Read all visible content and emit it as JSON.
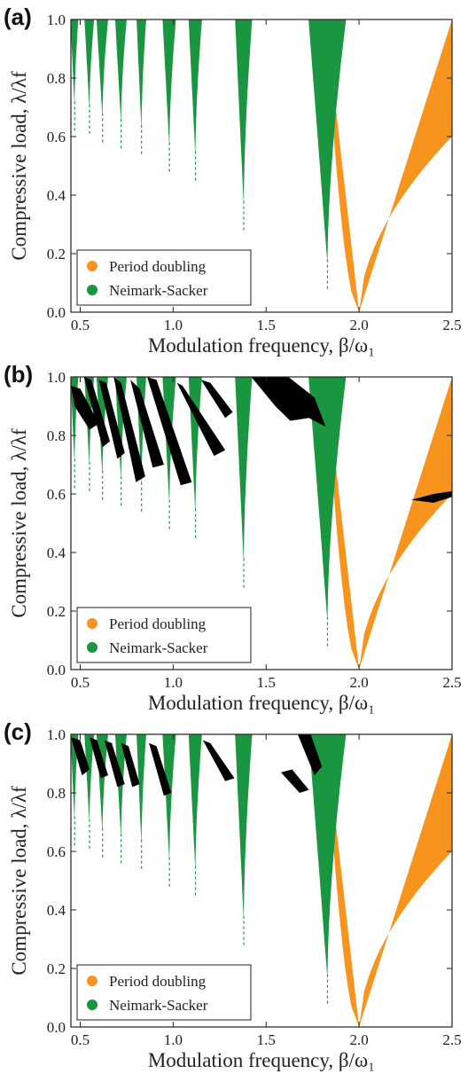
{
  "colors": {
    "period_doubling": "#f7941d",
    "neimark_sacker": "#1a9641",
    "other": "#000000",
    "axis": "#222222"
  },
  "chart_data": [
    {
      "panel_label": "(a)",
      "type": "heatmap",
      "xlabel": "Modulation frequency, β/ω₁",
      "ylabel": "Compressive load, λ/λf",
      "xlim": [
        0.45,
        2.5
      ],
      "ylim": [
        0.0,
        1.0
      ],
      "xticks": [
        "0.5",
        "1.0",
        "1.5",
        "2.0",
        "2.5"
      ],
      "yticks": [
        "0.0",
        "0.2",
        "0.4",
        "0.6",
        "0.8",
        "1.0"
      ],
      "legend": {
        "position": "bottom-left",
        "entries": [
          {
            "label": "Period doubling",
            "color": "#f7941d"
          },
          {
            "label": "Neimark-Sacker",
            "color": "#1a9641"
          }
        ]
      },
      "period_doubling_region": {
        "tip_x": 2.0,
        "tip_y": 0.0,
        "top_left_x": 1.82,
        "top_right_x": 2.5,
        "right_edge_y": 0.6
      },
      "neimark_sacker_tongues": [
        {
          "center": 0.47,
          "top_width": 0.04,
          "bottom_y": 0.72
        },
        {
          "center": 0.55,
          "top_width": 0.05,
          "bottom_y": 0.71
        },
        {
          "center": 0.62,
          "top_width": 0.06,
          "bottom_y": 0.68
        },
        {
          "center": 0.72,
          "top_width": 0.06,
          "bottom_y": 0.66
        },
        {
          "center": 0.83,
          "top_width": 0.05,
          "bottom_y": 0.64
        },
        {
          "center": 0.98,
          "top_width": 0.07,
          "bottom_y": 0.58
        },
        {
          "center": 1.12,
          "top_width": 0.07,
          "bottom_y": 0.55
        },
        {
          "center": 1.38,
          "top_width": 0.09,
          "bottom_y": 0.38
        },
        {
          "center": 1.83,
          "top_width": 0.2,
          "bottom_y": 0.18
        }
      ],
      "black_regions": []
    },
    {
      "panel_label": "(b)",
      "type": "heatmap",
      "xlabel": "Modulation frequency, β/ω₁",
      "ylabel": "Compressive load, λ/λf",
      "xlim": [
        0.45,
        2.5
      ],
      "ylim": [
        0.0,
        1.0
      ],
      "xticks": [
        "0.5",
        "1.0",
        "1.5",
        "2.0",
        "2.5"
      ],
      "yticks": [
        "0.0",
        "0.2",
        "0.4",
        "0.6",
        "0.8",
        "1.0"
      ],
      "legend": {
        "position": "bottom-left",
        "entries": [
          {
            "label": "Period doubling",
            "color": "#f7941d"
          },
          {
            "label": "Neimark-Sacker",
            "color": "#1a9641"
          }
        ]
      },
      "period_doubling_region": {
        "tip_x": 2.0,
        "tip_y": 0.0,
        "top_left_x": 1.82,
        "top_right_x": 2.5,
        "right_edge_y": 0.6
      },
      "neimark_sacker_tongues": [
        {
          "center": 0.47,
          "top_width": 0.04,
          "bottom_y": 0.72
        },
        {
          "center": 0.55,
          "top_width": 0.05,
          "bottom_y": 0.71
        },
        {
          "center": 0.62,
          "top_width": 0.06,
          "bottom_y": 0.68
        },
        {
          "center": 0.72,
          "top_width": 0.06,
          "bottom_y": 0.66
        },
        {
          "center": 0.83,
          "top_width": 0.05,
          "bottom_y": 0.64
        },
        {
          "center": 0.98,
          "top_width": 0.07,
          "bottom_y": 0.58
        },
        {
          "center": 1.12,
          "top_width": 0.07,
          "bottom_y": 0.55
        },
        {
          "center": 1.38,
          "top_width": 0.09,
          "bottom_y": 0.38
        },
        {
          "center": 1.83,
          "top_width": 0.2,
          "bottom_y": 0.18
        }
      ],
      "black_regions": [
        {
          "points": [
            [
              0.45,
              0.97
            ],
            [
              0.5,
              0.96
            ],
            [
              0.6,
              0.84
            ],
            [
              0.55,
              0.82
            ],
            [
              0.47,
              0.9
            ]
          ]
        },
        {
          "points": [
            [
              0.52,
              1.0
            ],
            [
              0.56,
              0.99
            ],
            [
              0.66,
              0.78
            ],
            [
              0.62,
              0.76
            ]
          ]
        },
        {
          "points": [
            [
              0.6,
              0.99
            ],
            [
              0.64,
              0.98
            ],
            [
              0.74,
              0.74
            ],
            [
              0.7,
              0.72
            ]
          ]
        },
        {
          "points": [
            [
              0.68,
              1.0
            ],
            [
              0.72,
              0.98
            ],
            [
              0.85,
              0.66
            ],
            [
              0.8,
              0.64
            ]
          ]
        },
        {
          "points": [
            [
              0.77,
              0.99
            ],
            [
              0.82,
              0.96
            ],
            [
              0.95,
              0.7
            ],
            [
              0.89,
              0.69
            ]
          ]
        },
        {
          "points": [
            [
              0.86,
              1.0
            ],
            [
              0.91,
              0.99
            ],
            [
              1.1,
              0.64
            ],
            [
              1.04,
              0.63
            ]
          ]
        },
        {
          "points": [
            [
              1.02,
              0.98
            ],
            [
              1.05,
              0.97
            ],
            [
              1.28,
              0.75
            ],
            [
              1.22,
              0.73
            ]
          ]
        },
        {
          "points": [
            [
              1.15,
              0.99
            ],
            [
              1.2,
              0.98
            ],
            [
              1.32,
              0.88
            ],
            [
              1.28,
              0.86
            ]
          ]
        },
        {
          "points": [
            [
              1.42,
              1.0
            ],
            [
              1.62,
              1.0
            ],
            [
              1.76,
              0.93
            ],
            [
              1.82,
              0.83
            ],
            [
              1.73,
              0.86
            ],
            [
              1.63,
              0.85
            ],
            [
              1.55,
              0.9
            ]
          ]
        },
        {
          "points": [
            [
              2.28,
              0.58
            ],
            [
              2.4,
              0.6
            ],
            [
              2.5,
              0.61
            ],
            [
              2.5,
              0.59
            ],
            [
              2.4,
              0.57
            ]
          ]
        }
      ]
    },
    {
      "panel_label": "(c)",
      "type": "heatmap",
      "xlabel": "Modulation frequency, β/ω₁",
      "ylabel": "Compressive load, λ/λf",
      "xlim": [
        0.45,
        2.5
      ],
      "ylim": [
        0.0,
        1.0
      ],
      "xticks": [
        "0.5",
        "1.0",
        "1.5",
        "2.0",
        "2.5"
      ],
      "yticks": [
        "0.0",
        "0.2",
        "0.4",
        "0.6",
        "0.8",
        "1.0"
      ],
      "legend": {
        "position": "bottom-left",
        "entries": [
          {
            "label": "Period doubling",
            "color": "#f7941d"
          },
          {
            "label": "Neimark-Sacker",
            "color": "#1a9641"
          }
        ]
      },
      "period_doubling_region": {
        "tip_x": 2.0,
        "tip_y": 0.0,
        "top_left_x": 1.82,
        "top_right_x": 2.5,
        "right_edge_y": 0.6
      },
      "neimark_sacker_tongues": [
        {
          "center": 0.47,
          "top_width": 0.04,
          "bottom_y": 0.72
        },
        {
          "center": 0.55,
          "top_width": 0.05,
          "bottom_y": 0.71
        },
        {
          "center": 0.62,
          "top_width": 0.06,
          "bottom_y": 0.68
        },
        {
          "center": 0.72,
          "top_width": 0.06,
          "bottom_y": 0.66
        },
        {
          "center": 0.83,
          "top_width": 0.05,
          "bottom_y": 0.64
        },
        {
          "center": 0.98,
          "top_width": 0.07,
          "bottom_y": 0.58
        },
        {
          "center": 1.12,
          "top_width": 0.07,
          "bottom_y": 0.55
        },
        {
          "center": 1.38,
          "top_width": 0.09,
          "bottom_y": 0.38
        },
        {
          "center": 1.83,
          "top_width": 0.2,
          "bottom_y": 0.18
        }
      ],
      "black_regions": [
        {
          "points": [
            [
              0.45,
              0.99
            ],
            [
              0.5,
              0.98
            ],
            [
              0.55,
              0.88
            ],
            [
              0.51,
              0.86
            ]
          ]
        },
        {
          "points": [
            [
              0.55,
              0.99
            ],
            [
              0.59,
              0.98
            ],
            [
              0.65,
              0.86
            ],
            [
              0.61,
              0.85
            ]
          ]
        },
        {
          "points": [
            [
              0.63,
              0.98
            ],
            [
              0.67,
              0.97
            ],
            [
              0.74,
              0.83
            ],
            [
              0.7,
              0.82
            ]
          ]
        },
        {
          "points": [
            [
              0.72,
              0.97
            ],
            [
              0.76,
              0.96
            ],
            [
              0.82,
              0.83
            ],
            [
              0.78,
              0.82
            ]
          ]
        },
        {
          "points": [
            [
              0.87,
              0.97
            ],
            [
              0.91,
              0.96
            ],
            [
              0.99,
              0.8
            ],
            [
              0.95,
              0.79
            ]
          ]
        },
        {
          "points": [
            [
              1.16,
              0.98
            ],
            [
              1.2,
              0.97
            ],
            [
              1.33,
              0.85
            ],
            [
              1.28,
              0.84
            ]
          ]
        },
        {
          "points": [
            [
              1.67,
              1.0
            ],
            [
              1.74,
              1.0
            ],
            [
              1.8,
              0.89
            ],
            [
              1.76,
              0.86
            ]
          ]
        },
        {
          "points": [
            [
              1.58,
              0.87
            ],
            [
              1.64,
              0.88
            ],
            [
              1.73,
              0.81
            ],
            [
              1.68,
              0.8
            ]
          ]
        }
      ]
    }
  ]
}
